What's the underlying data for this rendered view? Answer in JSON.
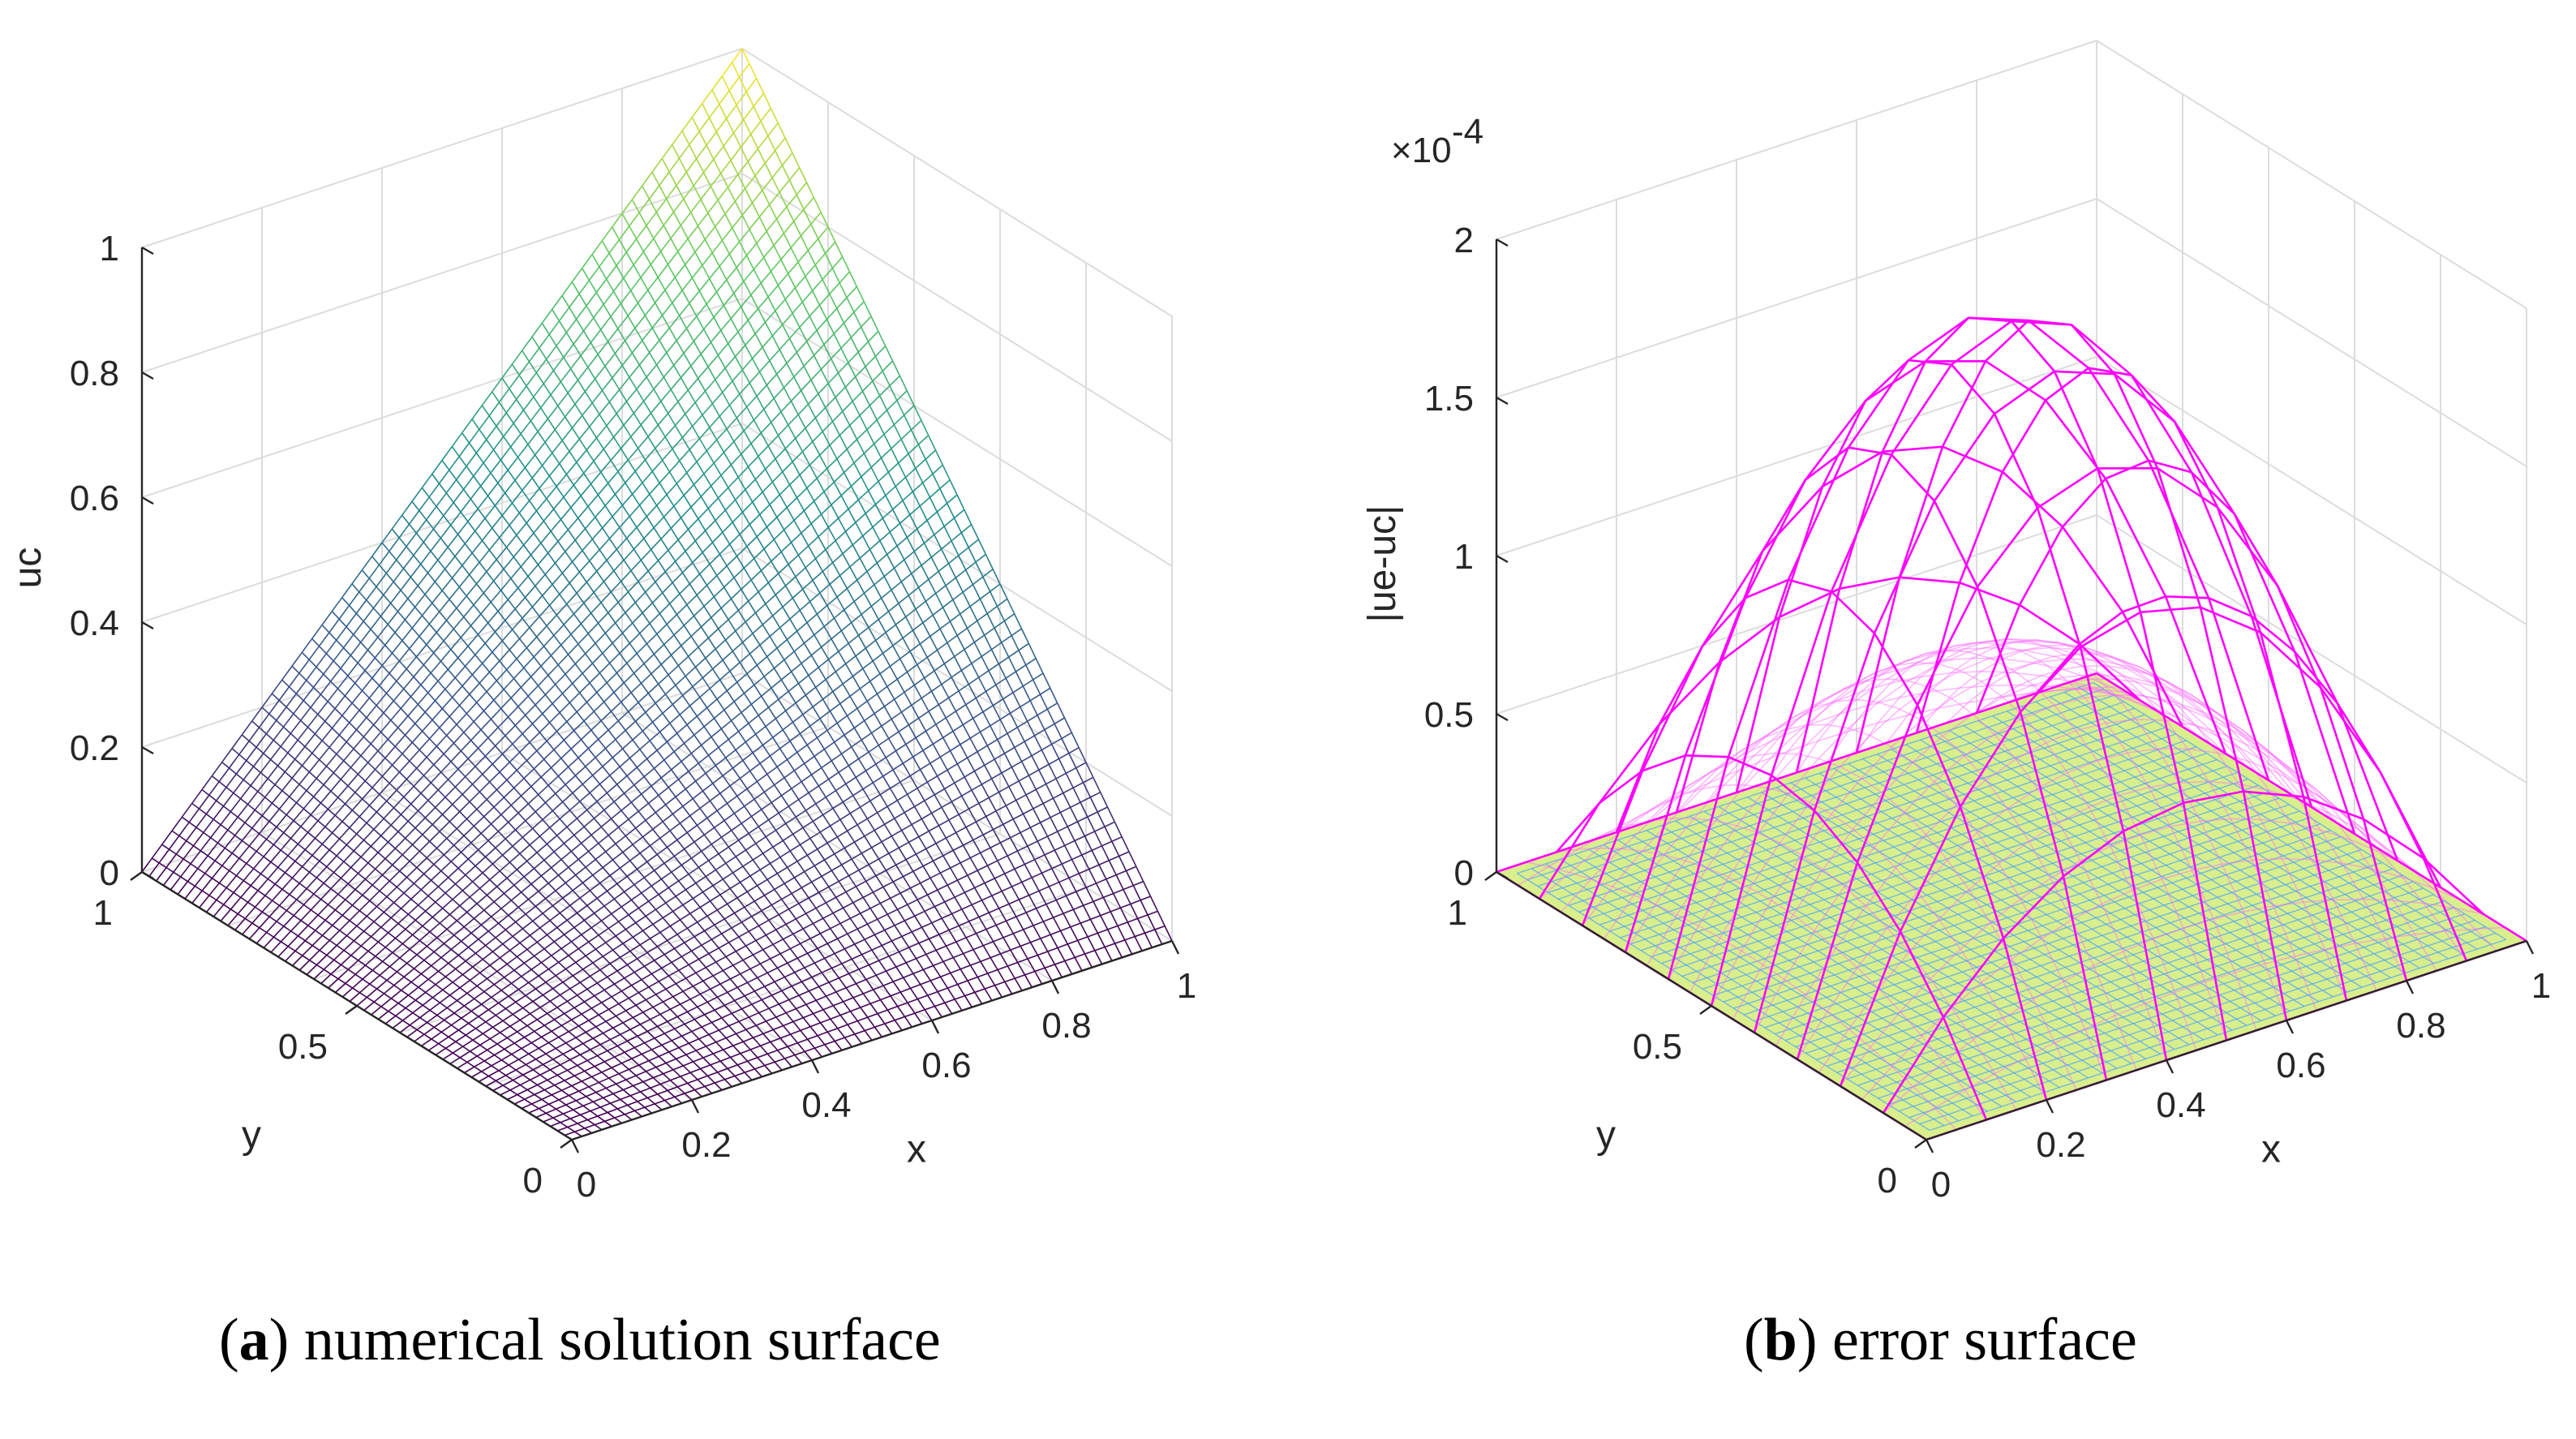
{
  "chart_data": [
    {
      "type": "surface",
      "caption": {
        "letter": "a",
        "text": "numerical solution surface"
      },
      "xlabel": "x",
      "ylabel": "y",
      "zlabel": "uc",
      "xlim": [
        0,
        1
      ],
      "ylim": [
        0,
        1
      ],
      "zlim": [
        0,
        1
      ],
      "xticks": [
        "0",
        "0.2",
        "0.4",
        "0.6",
        "0.8",
        "1"
      ],
      "yticks": [
        "0",
        "0.5",
        "1"
      ],
      "zticks": [
        "0",
        "0.2",
        "0.4",
        "0.6",
        "0.8",
        "1"
      ],
      "grid": true,
      "mesh_divisions": 60,
      "colormap": [
        "#440154",
        "#3b528b",
        "#21918c",
        "#5ec962",
        "#fde725"
      ],
      "function": "z = x * y",
      "sample_values": [
        {
          "x": 0,
          "y": 0,
          "z": 0
        },
        {
          "x": 1,
          "y": 0,
          "z": 0
        },
        {
          "x": 0,
          "y": 1,
          "z": 0
        },
        {
          "x": 1,
          "y": 1,
          "z": 1
        },
        {
          "x": 0.5,
          "y": 0.5,
          "z": 0.25
        }
      ]
    },
    {
      "type": "surface",
      "caption": {
        "letter": "b",
        "text": "error surface"
      },
      "xlabel": "x",
      "ylabel": "y",
      "zlabel": "|ue-uc|",
      "exponent_label": "×10",
      "exponent_power": "-4",
      "xlim": [
        0,
        1
      ],
      "ylim": [
        0,
        1
      ],
      "zlim": [
        0,
        2
      ],
      "xticks": [
        "0",
        "0.2",
        "0.4",
        "0.6",
        "0.8",
        "1"
      ],
      "yticks": [
        "0",
        "0.5",
        "1"
      ],
      "zticks": [
        "0",
        "0.5",
        "1",
        "1.5",
        "2"
      ],
      "grid": true,
      "series": [
        {
          "mesh_divisions": 10,
          "peak": 1.85,
          "color": "#ff00ff",
          "opacity": 1.0
        },
        {
          "mesh_divisions": 20,
          "peak": 0.75,
          "color": "#ff66ff",
          "opacity": 0.45
        },
        {
          "mesh_divisions": 40,
          "peak": 0.12,
          "color": "#4aa3ff",
          "opacity": 0.7
        }
      ],
      "floor_color": "#d9ef8b"
    }
  ]
}
